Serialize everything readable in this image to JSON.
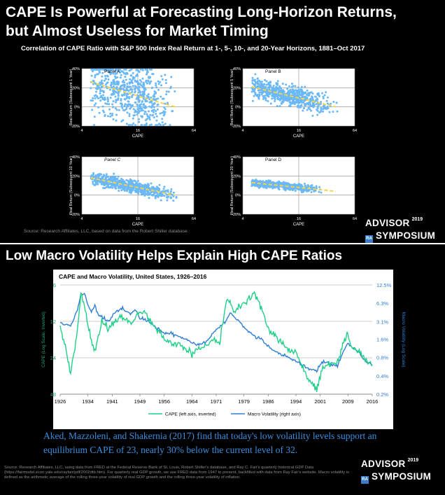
{
  "slide1": {
    "title_line1": "CAPE Is Powerful at Forecasting Long-Horizon Returns,",
    "title_line2": "but Almost Useless for Market Timing",
    "subtitle": "Correlation of CAPE Ratio with S&P 500 Index Real Return at 1-, 5-, 10-, and 20-Year Horizons, 1881–Oct 2017",
    "source": "Source: Research Affiliates, LLC, based on data from the Robert Shiller database.",
    "logo_line1": "ADVISOR",
    "logo_year": "2019",
    "logo_line2": "SYMPOSIUM"
  },
  "slide2": {
    "title": "Low Macro Volatility Helps Explain High CAPE Ratios",
    "conclusion": "Aked, Mazzoleni, and Shakernia (2017) find that today's low volatility levels support an equilibrium CAPE of 23, nearly 30% below the current level of 32.",
    "source": "Source: Research Affiliates, LLC, using data from FRED at the Federal Reserve Bank of St. Louis, Robert Shiller's database, and Ray C. Fair's quarterly historical GDP Data (https://fairmodel.econ.yale.edu/rayfair/pdf/2002dtb.htm). For quarterly real GDP growth, we use FRED data from 1947 to present, backfilled with data from Ray Fair's website. Macro volatility is defined as the arithmetic average of the rolling three-year volatility of real GDP growth and the rolling three-year volatility of inflation.",
    "logo_line1": "ADVISOR",
    "logo_year": "2019",
    "logo_line2": "SYMPOSIUM"
  },
  "colors": {
    "background": "#000000",
    "scatter": "#6ab8f7",
    "trend": "#f2d34a",
    "cape_line": "#1fd088",
    "vol_line": "#2f7ed8",
    "conclusion_text": "#3a8fe0"
  },
  "chart_data": [
    {
      "type": "scatter",
      "panel": "Panel A",
      "ylabel": "Real Return (Subsequent 1 Year)",
      "xlabel": "CAPE",
      "x_scale": "log2",
      "xlim": [
        4,
        64
      ],
      "x_ticks": [
        "4",
        "16",
        "64"
      ],
      "ylim": [
        -20,
        40
      ],
      "y_ticks": [
        "40%",
        "20%",
        "0%",
        "-20%"
      ],
      "trend": {
        "x": [
          5,
          40
        ],
        "y": [
          26,
          0
        ]
      },
      "cloud": {
        "x_range": [
          5,
          44
        ],
        "y_spread": 22
      }
    },
    {
      "type": "scatter",
      "panel": "Panel B",
      "ylabel": "Real Return (Subsequent 5 Year)",
      "xlabel": "CAPE",
      "x_scale": "log2",
      "xlim": [
        4,
        64
      ],
      "x_ticks": [
        "4",
        "16",
        "64"
      ],
      "ylim": [
        -20,
        40
      ],
      "y_ticks": [
        "40%",
        "20%",
        "0%",
        "-20%"
      ],
      "trend": {
        "x": [
          5,
          40
        ],
        "y": [
          21,
          0
        ]
      },
      "cloud": {
        "x_range": [
          5,
          44
        ],
        "y_spread": 8
      }
    },
    {
      "type": "scatter",
      "panel": "Panel C",
      "ylabel": "Real Return (Subsequent 10 Year)",
      "xlabel": "CAPE",
      "x_scale": "log2",
      "xlim": [
        4,
        64
      ],
      "x_ticks": [
        "4",
        "16",
        "64"
      ],
      "ylim": [
        -20,
        40
      ],
      "y_ticks": [
        "40%",
        "20%",
        "0%",
        "-20%"
      ],
      "trend": {
        "x": [
          5,
          40
        ],
        "y": [
          18,
          0
        ]
      },
      "cloud": {
        "x_range": [
          5,
          44
        ],
        "y_spread": 4.5
      }
    },
    {
      "type": "scatter",
      "panel": "Panel D",
      "ylabel": "Real Return (Subsequent 20 Year)",
      "xlabel": "CAPE",
      "x_scale": "log2",
      "xlim": [
        4,
        64
      ],
      "x_ticks": [
        "4",
        "16",
        "64"
      ],
      "ylim": [
        -20,
        40
      ],
      "y_ticks": [
        "40%",
        "20%",
        "0%",
        "-20%"
      ],
      "trend": {
        "x": [
          5,
          40
        ],
        "y": [
          13,
          4
        ]
      },
      "cloud": {
        "x_range": [
          5,
          28
        ],
        "y_spread": 2.5
      }
    },
    {
      "type": "line",
      "title": "CAPE and Macro Volatility, United States, 1926–2016",
      "x": [
        1926,
        1928,
        1929,
        1930,
        1931,
        1932,
        1933,
        1934,
        1935,
        1936,
        1937,
        1938,
        1940,
        1942,
        1944,
        1946,
        1948,
        1949,
        1950,
        1952,
        1954,
        1956,
        1958,
        1960,
        1962,
        1964,
        1966,
        1968,
        1970,
        1972,
        1974,
        1975,
        1976,
        1978,
        1980,
        1982,
        1984,
        1986,
        1988,
        1990,
        1992,
        1994,
        1996,
        1998,
        2000,
        2001,
        2002,
        2004,
        2006,
        2008,
        2009,
        2010,
        2012,
        2014,
        2016
      ],
      "xlim": [
        1926,
        2016
      ],
      "x_ticks": [
        "1926",
        "1934",
        "1941",
        "1949",
        "1956",
        "1964",
        "1971",
        "1979",
        "1986",
        "1994",
        "2001",
        "2009",
        "2016"
      ],
      "series": [
        {
          "name": "CAPE (left axis, inverted)",
          "axis": "left",
          "values": [
            13,
            22,
            32,
            22,
            14,
            7,
            9,
            13,
            17,
            22,
            16,
            12,
            14,
            12,
            11,
            13,
            11,
            10,
            10,
            12,
            14,
            17,
            19,
            18,
            20,
            22,
            20,
            19,
            17,
            18,
            8,
            8,
            10,
            9,
            8,
            7,
            9,
            14,
            16,
            18,
            21,
            22,
            30,
            38,
            44,
            34,
            28,
            27,
            27,
            17,
            15,
            20,
            21,
            25,
            28
          ]
        },
        {
          "name": "Macro Volatility (right axis)",
          "axis": "right",
          "values": [
            3.0,
            2.8,
            2.6,
            3.5,
            5.0,
            8.5,
            9.0,
            6.0,
            4.5,
            5.5,
            4.0,
            3.8,
            3.2,
            4.5,
            5.2,
            4.2,
            4.8,
            3.4,
            3.5,
            3.0,
            2.4,
            2.0,
            2.0,
            1.8,
            1.6,
            1.4,
            1.3,
            1.4,
            2.0,
            2.6,
            3.2,
            4.6,
            3.8,
            3.0,
            2.2,
            1.8,
            1.6,
            1.2,
            1.0,
            0.9,
            0.8,
            0.7,
            0.6,
            0.5,
            0.5,
            0.6,
            0.7,
            0.6,
            0.6,
            1.1,
            1.4,
            1.2,
            1.0,
            0.7,
            0.6
          ]
        }
      ],
      "ylabel_left": "CAPE (Log Scale, Inverted)",
      "ylim_left": [
        6,
        48
      ],
      "y_ticks_left": [
        "6",
        "12",
        "24",
        "48"
      ],
      "ylabel_right": "Macro Volatility (Log Scale)",
      "ylim_right": [
        0.2,
        12.5
      ],
      "y_ticks_right": [
        "12.5%",
        "6.3%",
        "3.1%",
        "1.6%",
        "0.8%",
        "0.4%",
        "0.2%"
      ],
      "y_scale": "log",
      "grid": true,
      "legend": "bottom"
    }
  ]
}
